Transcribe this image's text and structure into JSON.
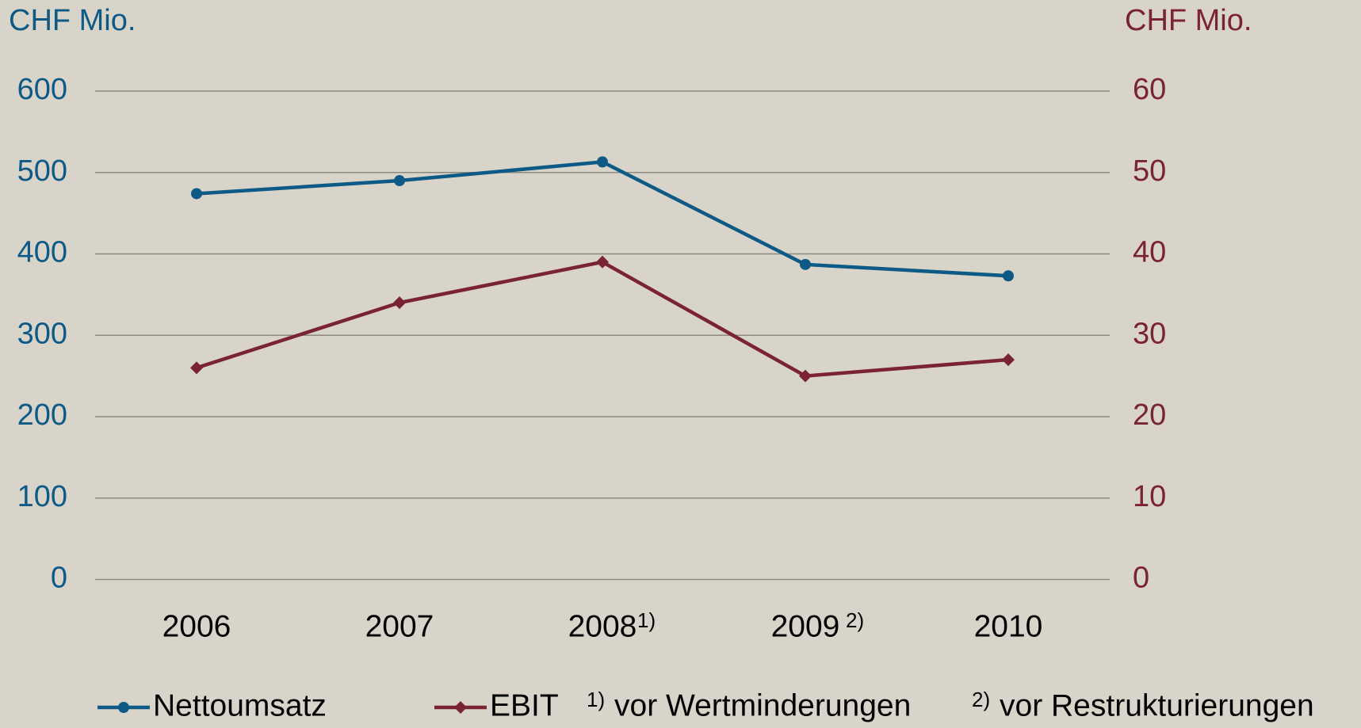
{
  "chart_data": {
    "type": "line",
    "y_label": "CHF Mio.",
    "y2_label": "CHF Mio.",
    "categories": [
      "2006",
      "2007",
      "2008",
      "2009",
      "2010"
    ],
    "category_notes": [
      null,
      null,
      "1)",
      "2)",
      null
    ],
    "series": [
      {
        "name": "Nettoumsatz",
        "color": "#0e5a86",
        "marker": "circle",
        "values": [
          474,
          490,
          513,
          387,
          373
        ]
      },
      {
        "name": "EBIT",
        "color": "#7a2333",
        "marker": "diamond",
        "axis": "y2",
        "values": [
          26,
          34,
          39,
          25,
          27
        ]
      }
    ],
    "notes": [
      {
        "marker": "1)",
        "text": "vor Wertminderungen"
      },
      {
        "marker": "2)",
        "text": "vor Restrukturierungen"
      }
    ],
    "ylim": [
      0,
      600
    ],
    "yticks": [
      0,
      100,
      200,
      300,
      400,
      500,
      600
    ],
    "y2lim": [
      0,
      60
    ],
    "y2ticks": [
      0,
      10,
      20,
      30,
      40,
      50,
      60
    ],
    "grid": true
  }
}
